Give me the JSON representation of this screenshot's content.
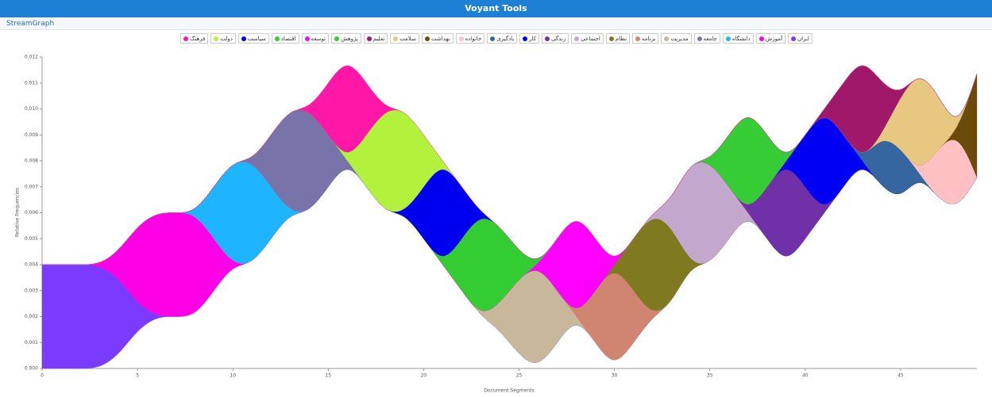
{
  "header": {
    "app": "Voyant Tools",
    "panel": "StreamGraph"
  },
  "chart_data": {
    "type": "streamgraph",
    "x_label": "Document Segments",
    "y_label": "Relative Frequencies",
    "x": [
      0,
      1,
      2,
      3,
      4,
      5,
      6,
      7,
      8,
      9,
      10,
      11,
      12,
      13,
      14,
      15,
      16,
      17,
      18,
      19,
      20,
      21,
      22,
      23,
      24,
      25,
      26,
      27,
      28,
      29,
      30,
      31,
      32,
      33,
      34,
      35,
      36,
      37,
      38,
      39,
      40,
      41,
      42,
      43,
      44,
      45,
      46,
      47,
      48,
      49
    ],
    "xlim": [
      0,
      49
    ],
    "xticks": [
      0,
      5,
      10,
      15,
      20,
      25,
      30,
      35,
      40,
      45
    ],
    "ylim": [
      0,
      0.012
    ],
    "yticks": [
      {
        "value": 0,
        "label": "0.000"
      },
      {
        "value": 0.001,
        "label": "0.001"
      },
      {
        "value": 0.002,
        "label": "0.002"
      },
      {
        "value": 0.003,
        "label": "0.003"
      },
      {
        "value": 0.004,
        "label": "0.004"
      },
      {
        "value": 0.005,
        "label": "0.005"
      },
      {
        "value": 0.006,
        "label": "0.006"
      },
      {
        "value": 0.007,
        "label": "0.007"
      },
      {
        "value": 0.008,
        "label": "0.008"
      },
      {
        "value": 0.009,
        "label": "0.009"
      },
      {
        "value": 0.01,
        "label": "0.010"
      },
      {
        "value": 0.011,
        "label": "0.011"
      },
      {
        "value": 0.012,
        "label": "0.012"
      }
    ],
    "series": [
      {
        "name": "ایران",
        "color": "#7b3bff",
        "values": [
          0.004,
          0.004,
          0.004,
          0.004,
          0.003,
          0.001,
          0,
          0,
          0,
          0,
          0,
          0,
          0,
          0,
          0,
          0,
          0,
          0,
          0,
          0,
          0,
          0,
          0,
          0,
          0,
          0,
          0,
          0,
          0,
          0,
          0,
          0,
          0,
          0,
          0,
          0,
          0,
          0,
          0,
          0,
          0,
          0,
          0,
          0,
          0,
          0,
          0,
          0,
          0,
          0
        ]
      },
      {
        "name": "آموزش",
        "color": "#ff00e6",
        "values": [
          0,
          0,
          0,
          0,
          0.001,
          0.003,
          0.004,
          0.004,
          0.004,
          0.002,
          0,
          0,
          0,
          0,
          0,
          0,
          0,
          0,
          0,
          0,
          0,
          0,
          0,
          0,
          0,
          0,
          0,
          0,
          0,
          0,
          0,
          0,
          0,
          0,
          0,
          0,
          0,
          0,
          0,
          0,
          0,
          0,
          0,
          0,
          0,
          0,
          0,
          0,
          0,
          0
        ]
      },
      {
        "name": "دانشگاه",
        "color": "#1eb4ff",
        "values": [
          0,
          0,
          0,
          0,
          0,
          0,
          0,
          0,
          0,
          0.002,
          0.004,
          0.004,
          0.002,
          0,
          0,
          0,
          0,
          0,
          0,
          0,
          0,
          0,
          0,
          0,
          0,
          0,
          0,
          0,
          0,
          0,
          0,
          0,
          0,
          0,
          0,
          0,
          0,
          0,
          0,
          0,
          0,
          0,
          0,
          0,
          0,
          0,
          0,
          0,
          0,
          0
        ]
      },
      {
        "name": "جامعه",
        "color": "#7873a8",
        "values": [
          0,
          0,
          0,
          0,
          0,
          0,
          0,
          0,
          0,
          0,
          0,
          0,
          0.002,
          0.004,
          0.004,
          0.002,
          0,
          0,
          0,
          0,
          0,
          0,
          0,
          0,
          0,
          0,
          0,
          0,
          0,
          0,
          0,
          0,
          0,
          0,
          0,
          0,
          0,
          0,
          0,
          0,
          0,
          0,
          0,
          0,
          0,
          0,
          0,
          0,
          0,
          0
        ]
      },
      {
        "name": "مدیریت",
        "color": "#c9b79c",
        "values": [
          0,
          0,
          0,
          0,
          0,
          0,
          0,
          0,
          0,
          0,
          0,
          0,
          0,
          0,
          0,
          0,
          0,
          0,
          0,
          0,
          0,
          0,
          0,
          0,
          0.001,
          0.003,
          0.004,
          0.002,
          0,
          0,
          0,
          0,
          0,
          0,
          0,
          0,
          0,
          0,
          0,
          0,
          0,
          0,
          0,
          0,
          0,
          0,
          0,
          0,
          0,
          0
        ]
      },
      {
        "name": "برنامه",
        "color": "#d08570",
        "values": [
          0,
          0,
          0,
          0,
          0,
          0,
          0,
          0,
          0,
          0,
          0,
          0,
          0,
          0,
          0,
          0,
          0,
          0,
          0,
          0,
          0,
          0,
          0,
          0,
          0,
          0,
          0,
          0,
          0,
          0.002,
          0.004,
          0.002,
          0,
          0,
          0,
          0,
          0,
          0,
          0,
          0,
          0,
          0,
          0,
          0,
          0,
          0,
          0,
          0,
          0,
          0
        ]
      },
      {
        "name": "نظام",
        "color": "#7f7a1f",
        "values": [
          0,
          0,
          0,
          0,
          0,
          0,
          0,
          0,
          0,
          0,
          0,
          0,
          0,
          0,
          0,
          0,
          0,
          0,
          0,
          0,
          0,
          0,
          0,
          0,
          0,
          0,
          0,
          0,
          0,
          0,
          0,
          0.002,
          0.004,
          0.003,
          0,
          0,
          0,
          0,
          0,
          0,
          0,
          0,
          0,
          0,
          0,
          0,
          0,
          0,
          0,
          0
        ]
      },
      {
        "name": "اجتماعی",
        "color": "#c3a7cc",
        "values": [
          0,
          0,
          0,
          0,
          0,
          0,
          0,
          0,
          0,
          0,
          0,
          0,
          0,
          0,
          0,
          0,
          0,
          0,
          0,
          0,
          0,
          0,
          0,
          0,
          0,
          0,
          0,
          0,
          0,
          0,
          0,
          0,
          0,
          0.001,
          0.004,
          0.004,
          0.002,
          0,
          0,
          0,
          0,
          0,
          0,
          0,
          0,
          0,
          0,
          0,
          0,
          0
        ]
      },
      {
        "name": "زندگی",
        "color": "#7030a8",
        "values": [
          0,
          0,
          0,
          0,
          0,
          0,
          0,
          0,
          0,
          0,
          0,
          0,
          0,
          0,
          0,
          0,
          0,
          0,
          0,
          0,
          0,
          0,
          0,
          0,
          0,
          0,
          0,
          0,
          0,
          0,
          0,
          0,
          0,
          0,
          0,
          0,
          0,
          0,
          0.002,
          0.004,
          0.002,
          0,
          0,
          0,
          0,
          0,
          0,
          0,
          0,
          0
        ]
      },
      {
        "name": "کار",
        "color": "#0000f5",
        "values": [
          0,
          0,
          0,
          0,
          0,
          0,
          0,
          0,
          0,
          0,
          0,
          0,
          0,
          0,
          0,
          0,
          0,
          0,
          0,
          0,
          0,
          0,
          0,
          0,
          0,
          0,
          0,
          0,
          0,
          0,
          0,
          0,
          0,
          0,
          0,
          0,
          0,
          0,
          0,
          0,
          0.002,
          0.004,
          0.002,
          0,
          0,
          0,
          0,
          0,
          0,
          0
        ]
      },
      {
        "name": "یادگیری",
        "color": "#3566a0",
        "values": [
          0,
          0,
          0,
          0,
          0,
          0,
          0,
          0,
          0,
          0,
          0,
          0,
          0,
          0,
          0,
          0,
          0,
          0,
          0,
          0,
          0,
          0,
          0,
          0,
          0,
          0,
          0,
          0,
          0,
          0,
          0,
          0,
          0,
          0,
          0,
          0,
          0,
          0,
          0,
          0,
          0,
          0,
          0,
          0,
          0.002,
          0.002,
          0,
          0,
          0,
          0
        ]
      },
      {
        "name": "خانواده",
        "color": "#ffc0c3",
        "values": [
          0,
          0,
          0,
          0,
          0,
          0,
          0,
          0,
          0,
          0,
          0,
          0,
          0,
          0,
          0,
          0,
          0,
          0,
          0,
          0,
          0,
          0,
          0,
          0,
          0,
          0,
          0,
          0,
          0,
          0,
          0,
          0,
          0,
          0,
          0,
          0,
          0,
          0,
          0,
          0,
          0,
          0,
          0,
          0,
          0,
          0,
          0,
          0.002,
          0.003,
          0
        ]
      },
      {
        "name": "بهداشت",
        "color": "#6b4a0a",
        "values": [
          0,
          0,
          0,
          0,
          0,
          0,
          0,
          0,
          0,
          0,
          0,
          0,
          0,
          0,
          0,
          0,
          0,
          0,
          0,
          0,
          0,
          0,
          0,
          0,
          0,
          0,
          0,
          0,
          0,
          0,
          0,
          0,
          0,
          0,
          0,
          0,
          0,
          0,
          0,
          0,
          0,
          0,
          0,
          0,
          0,
          0,
          0,
          0,
          0,
          0.004
        ]
      },
      {
        "name": "سلامت",
        "color": "#e8c880",
        "values": [
          0,
          0,
          0,
          0,
          0,
          0,
          0,
          0,
          0,
          0,
          0,
          0,
          0,
          0,
          0,
          0,
          0,
          0,
          0,
          0,
          0,
          0,
          0,
          0,
          0,
          0,
          0,
          0,
          0,
          0,
          0,
          0,
          0,
          0,
          0,
          0,
          0,
          0,
          0,
          0,
          0,
          0,
          0,
          0,
          0,
          0.002,
          0.004,
          0.002,
          0,
          0
        ]
      },
      {
        "name": "تعلیم",
        "color": "#a0186a",
        "values": [
          0,
          0,
          0,
          0,
          0,
          0,
          0,
          0,
          0,
          0,
          0,
          0,
          0,
          0,
          0,
          0,
          0,
          0,
          0,
          0,
          0,
          0,
          0,
          0,
          0,
          0,
          0,
          0,
          0,
          0,
          0,
          0,
          0,
          0,
          0,
          0,
          0,
          0,
          0,
          0,
          0,
          0,
          0.002,
          0.004,
          0.002,
          0,
          0,
          0,
          0,
          0
        ]
      },
      {
        "name": "پژوهش",
        "color": "#35cc35",
        "values": [
          0,
          0,
          0,
          0,
          0,
          0,
          0,
          0,
          0,
          0,
          0,
          0,
          0,
          0,
          0,
          0,
          0,
          0,
          0,
          0,
          0,
          0,
          0,
          0,
          0,
          0,
          0,
          0,
          0,
          0,
          0,
          0,
          0,
          0,
          0,
          0,
          0.002,
          0.004,
          0.002,
          0,
          0,
          0,
          0,
          0,
          0,
          0,
          0,
          0,
          0,
          0
        ]
      },
      {
        "name": "توسعه",
        "color": "#ff00ff",
        "values": [
          0,
          0,
          0,
          0,
          0,
          0,
          0,
          0,
          0,
          0,
          0,
          0,
          0,
          0,
          0,
          0,
          0,
          0,
          0,
          0,
          0,
          0,
          0,
          0,
          0,
          0,
          0,
          0.002,
          0.004,
          0.002,
          0,
          0,
          0,
          0,
          0,
          0,
          0,
          0,
          0,
          0,
          0,
          0,
          0,
          0,
          0,
          0,
          0,
          0,
          0,
          0
        ]
      },
      {
        "name": "اقتصاد",
        "color": "#33cc33",
        "values": [
          0,
          0,
          0,
          0,
          0,
          0,
          0,
          0,
          0,
          0,
          0,
          0,
          0,
          0,
          0,
          0,
          0,
          0,
          0,
          0,
          0,
          0,
          0.002,
          0.004,
          0.003,
          0.001,
          0,
          0,
          0,
          0,
          0,
          0,
          0,
          0,
          0,
          0,
          0,
          0,
          0,
          0,
          0,
          0,
          0,
          0,
          0,
          0,
          0,
          0,
          0,
          0
        ]
      },
      {
        "name": "سیاست",
        "color": "#0000f0",
        "values": [
          0,
          0,
          0,
          0,
          0,
          0,
          0,
          0,
          0,
          0,
          0,
          0,
          0,
          0,
          0,
          0,
          0,
          0,
          0,
          0,
          0.002,
          0.004,
          0.002,
          0,
          0,
          0,
          0,
          0,
          0,
          0,
          0,
          0,
          0,
          0,
          0,
          0,
          0,
          0,
          0,
          0,
          0,
          0,
          0,
          0,
          0,
          0,
          0,
          0,
          0,
          0
        ]
      },
      {
        "name": "دولت",
        "color": "#b3f23c",
        "values": [
          0,
          0,
          0,
          0,
          0,
          0,
          0,
          0,
          0,
          0,
          0,
          0,
          0,
          0,
          0,
          0,
          0,
          0.002,
          0.004,
          0.004,
          0.002,
          0,
          0,
          0,
          0,
          0,
          0,
          0,
          0,
          0,
          0,
          0,
          0,
          0,
          0,
          0,
          0,
          0,
          0,
          0,
          0,
          0,
          0,
          0,
          0,
          0,
          0,
          0,
          0,
          0
        ]
      },
      {
        "name": "فرهنگ",
        "color": "#ff18a8",
        "values": [
          0,
          0,
          0,
          0,
          0,
          0,
          0,
          0,
          0,
          0,
          0,
          0,
          0,
          0,
          0,
          0.002,
          0.004,
          0.002,
          0,
          0,
          0,
          0,
          0,
          0,
          0,
          0,
          0,
          0,
          0,
          0,
          0,
          0,
          0,
          0,
          0,
          0,
          0,
          0,
          0,
          0,
          0,
          0,
          0,
          0,
          0,
          0,
          0,
          0,
          0,
          0
        ]
      }
    ]
  }
}
